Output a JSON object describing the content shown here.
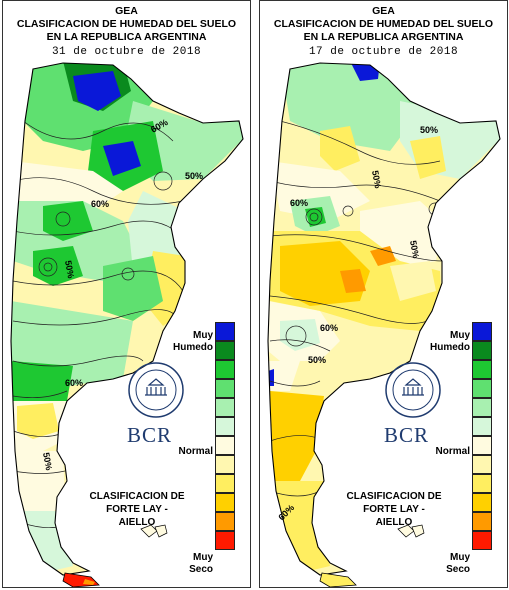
{
  "panels": [
    {
      "org": "GEA",
      "title_line1": "CLASIFICACION DE HUMEDAD DEL SUELO",
      "title_line2": "EN LA REPUBLICA ARGENTINA",
      "date": "31 de octubre de 2018",
      "contour_labels": [
        "60%",
        "50%",
        "60%",
        "50%",
        "60%",
        "50%"
      ]
    },
    {
      "org": "GEA",
      "title_line1": "CLASIFICACION DE HUMEDAD DEL SUELO",
      "title_line2": "EN LA REPUBLICA ARGENTINA",
      "date": "17 de octubre de 2018",
      "contour_labels": [
        "50%",
        "50%",
        "60%",
        "50%",
        "60%",
        "50%",
        "60%"
      ]
    }
  ],
  "legend": {
    "top_label_1": "Muy",
    "top_label_2": "Humedo",
    "middle_label": "Normal",
    "bottom_label_1": "Muy",
    "bottom_label_2": "Seco",
    "classification_line1": "CLASIFICACION DE",
    "classification_line2": "FORTE LAY - AIELLO",
    "colors": [
      "#0a18d8",
      "#0a8a1e",
      "#1ec832",
      "#5fe070",
      "#a8f0b0",
      "#d6f7da",
      "#fffbe0",
      "#fff7b0",
      "#ffee60",
      "#ffd000",
      "#ff9a00",
      "#ff1a00"
    ]
  },
  "logo": {
    "text": "BCR"
  }
}
